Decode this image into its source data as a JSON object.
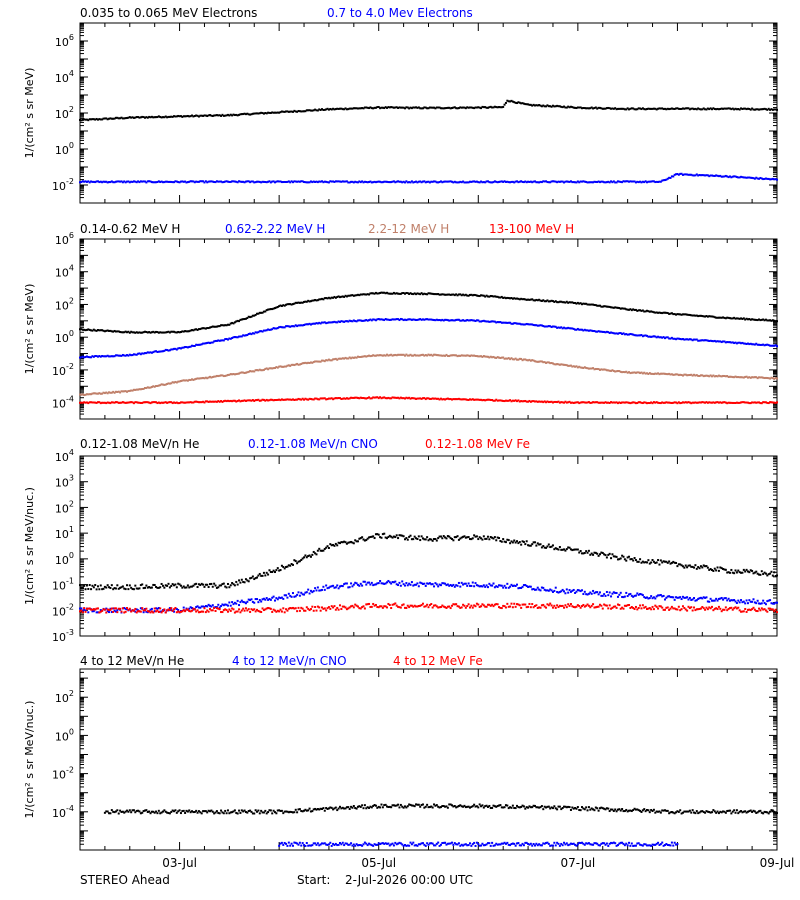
{
  "footer": {
    "spacecraft": "STEREO Ahead",
    "start_label": "Start:",
    "start_value": "2-Jul-2026 00:00 UTC"
  },
  "x_axis": {
    "ticks": [
      {
        "date": "2026-07-03",
        "label": "03-Jul"
      },
      {
        "date": "2026-07-05",
        "label": "05-Jul"
      },
      {
        "date": "2026-07-07",
        "label": "07-Jul"
      },
      {
        "date": "2026-07-09",
        "label": "09-Jul"
      }
    ]
  },
  "chart_data": [
    {
      "type": "scatter",
      "panel": "electrons",
      "ylabel": "1/(cm² s sr MeV)",
      "yscale": "log",
      "ylim": [
        0.001,
        10000000.0
      ],
      "yticks": [
        0.01,
        1,
        100,
        10000,
        1000000
      ],
      "xlim": [
        "2026-07-02 00:00",
        "2026-07-09 00:00"
      ],
      "series": [
        {
          "name": "0.035 to 0.065 MeV Electrons",
          "color": "#000000",
          "x": [
            "2026-07-02 00:00",
            "2026-07-02 12:00",
            "2026-07-03 00:00",
            "2026-07-03 12:00",
            "2026-07-04 00:00",
            "2026-07-04 12:00",
            "2026-07-05 00:00",
            "2026-07-05 12:00",
            "2026-07-06 00:00",
            "2026-07-06 06:00",
            "2026-07-06 07:00",
            "2026-07-06 12:00",
            "2026-07-07 00:00",
            "2026-07-07 12:00",
            "2026-07-08 00:00",
            "2026-07-08 12:00",
            "2026-07-09 00:00"
          ],
          "y": [
            40,
            55,
            65,
            75,
            110,
            160,
            200,
            190,
            200,
            210,
            500,
            280,
            200,
            170,
            170,
            170,
            160
          ]
        },
        {
          "name": "0.7 to 4.0 Mev Electrons",
          "color": "#0000ff",
          "x": [
            "2026-07-02 00:00",
            "2026-07-03 00:00",
            "2026-07-04 00:00",
            "2026-07-05 00:00",
            "2026-07-06 00:00",
            "2026-07-07 00:00",
            "2026-07-07 20:00",
            "2026-07-08 00:00",
            "2026-07-08 12:00",
            "2026-07-09 00:00"
          ],
          "y": [
            0.015,
            0.015,
            0.015,
            0.015,
            0.015,
            0.015,
            0.015,
            0.04,
            0.03,
            0.02
          ]
        }
      ]
    },
    {
      "type": "scatter",
      "panel": "protons",
      "ylabel": "1/(cm² s sr MeV)",
      "yscale": "log",
      "ylim": [
        1e-05,
        1000000.0
      ],
      "yticks": [
        0.0001,
        0.01,
        1,
        100,
        10000,
        1000000
      ],
      "xlim": [
        "2026-07-02 00:00",
        "2026-07-09 00:00"
      ],
      "series": [
        {
          "name": "0.14-0.62 MeV H",
          "color": "#000000",
          "x": [
            "2026-07-02 00:00",
            "2026-07-02 12:00",
            "2026-07-03 00:00",
            "2026-07-03 12:00",
            "2026-07-04 00:00",
            "2026-07-04 12:00",
            "2026-07-05 00:00",
            "2026-07-05 12:00",
            "2026-07-06 00:00",
            "2026-07-06 12:00",
            "2026-07-07 00:00",
            "2026-07-07 12:00",
            "2026-07-08 00:00",
            "2026-07-08 12:00",
            "2026-07-09 00:00"
          ],
          "y": [
            3,
            2,
            2,
            6,
            80,
            250,
            500,
            450,
            350,
            200,
            120,
            50,
            25,
            15,
            10
          ]
        },
        {
          "name": "0.62-2.22 MeV H",
          "color": "#0000ff",
          "x": [
            "2026-07-02 00:00",
            "2026-07-02 12:00",
            "2026-07-03 00:00",
            "2026-07-03 12:00",
            "2026-07-04 00:00",
            "2026-07-04 12:00",
            "2026-07-05 00:00",
            "2026-07-05 12:00",
            "2026-07-06 00:00",
            "2026-07-06 12:00",
            "2026-07-07 00:00",
            "2026-07-07 12:00",
            "2026-07-08 00:00",
            "2026-07-08 12:00",
            "2026-07-09 00:00"
          ],
          "y": [
            0.06,
            0.08,
            0.2,
            0.8,
            4,
            8,
            12,
            12,
            10,
            6,
            3,
            1.5,
            0.8,
            0.5,
            0.3
          ]
        },
        {
          "name": "2.2-12 MeV H",
          "color": "#c0806a",
          "x": [
            "2026-07-02 00:00",
            "2026-07-02 12:00",
            "2026-07-03 00:00",
            "2026-07-03 12:00",
            "2026-07-04 00:00",
            "2026-07-04 12:00",
            "2026-07-05 00:00",
            "2026-07-05 12:00",
            "2026-07-06 00:00",
            "2026-07-06 12:00",
            "2026-07-07 00:00",
            "2026-07-07 12:00",
            "2026-07-08 00:00",
            "2026-07-08 12:00",
            "2026-07-09 00:00"
          ],
          "y": [
            0.0003,
            0.0005,
            0.002,
            0.005,
            0.015,
            0.04,
            0.08,
            0.08,
            0.07,
            0.04,
            0.015,
            0.007,
            0.005,
            0.004,
            0.003
          ]
        },
        {
          "name": "13-100 MeV H",
          "color": "#ff0000",
          "x": [
            "2026-07-02 00:00",
            "2026-07-03 00:00",
            "2026-07-04 00:00",
            "2026-07-05 00:00",
            "2026-07-06 00:00",
            "2026-07-07 00:00",
            "2026-07-08 00:00",
            "2026-07-09 00:00"
          ],
          "y": [
            0.0001,
            0.0001,
            0.00015,
            0.0002,
            0.00015,
            0.0001,
            0.0001,
            0.0001
          ]
        }
      ]
    },
    {
      "type": "scatter",
      "panel": "he_cno_fe_low",
      "ylabel": "1/(cm² s sr MeV/nuc.)",
      "yscale": "log",
      "ylim": [
        0.001,
        10000.0
      ],
      "yticks": [
        0.001,
        0.01,
        0.1,
        1,
        10,
        100,
        1000,
        10000
      ],
      "xlim": [
        "2026-07-02 00:00",
        "2026-07-09 00:00"
      ],
      "series": [
        {
          "name": "0.12-1.08 MeV/n He",
          "color": "#000000",
          "x": [
            "2026-07-02 00:00",
            "2026-07-02 12:00",
            "2026-07-03 00:00",
            "2026-07-03 12:00",
            "2026-07-04 00:00",
            "2026-07-04 12:00",
            "2026-07-05 00:00",
            "2026-07-05 12:00",
            "2026-07-06 00:00",
            "2026-07-06 12:00",
            "2026-07-07 00:00",
            "2026-07-07 12:00",
            "2026-07-08 00:00",
            "2026-07-08 12:00",
            "2026-07-09 00:00"
          ],
          "y": [
            0.08,
            0.08,
            0.09,
            0.09,
            0.4,
            3,
            8,
            6,
            7,
            4,
            2,
            1,
            0.6,
            0.35,
            0.25
          ]
        },
        {
          "name": "0.12-1.08 MeV/n CNO",
          "color": "#0000ff",
          "x": [
            "2026-07-02 00:00",
            "2026-07-03 00:00",
            "2026-07-04 00:00",
            "2026-07-04 12:00",
            "2026-07-05 00:00",
            "2026-07-05 12:00",
            "2026-07-06 00:00",
            "2026-07-06 12:00",
            "2026-07-07 00:00",
            "2026-07-08 00:00",
            "2026-07-09 00:00"
          ],
          "y": [
            0.01,
            0.01,
            0.03,
            0.08,
            0.12,
            0.1,
            0.1,
            0.08,
            0.05,
            0.03,
            0.02
          ]
        },
        {
          "name": "0.12-1.08 MeV Fe",
          "color": "#ff0000",
          "x": [
            "2026-07-02 00:00",
            "2026-07-03 00:00",
            "2026-07-04 00:00",
            "2026-07-05 00:00",
            "2026-07-06 00:00",
            "2026-07-07 00:00",
            "2026-07-08 00:00",
            "2026-07-09 00:00"
          ],
          "y": [
            0.01,
            0.01,
            0.01,
            0.015,
            0.015,
            0.015,
            0.012,
            0.01
          ]
        }
      ]
    },
    {
      "type": "scatter",
      "panel": "he_cno_fe_high",
      "ylabel": "1/(cm² s sr MeV/nuc.)",
      "yscale": "log",
      "ylim": [
        1e-06,
        3000.0
      ],
      "yticks": [
        0.0001,
        0.01,
        1,
        100
      ],
      "xlim": [
        "2026-07-02 00:00",
        "2026-07-09 00:00"
      ],
      "series": [
        {
          "name": "4 to 12 MeV/n He",
          "color": "#000000",
          "x": [
            "2026-07-02 06:00",
            "2026-07-03 00:00",
            "2026-07-04 00:00",
            "2026-07-05 00:00",
            "2026-07-06 00:00",
            "2026-07-07 00:00",
            "2026-07-08 00:00",
            "2026-07-09 00:00"
          ],
          "y": [
            0.0001,
            0.0001,
            0.0001,
            0.0002,
            0.0002,
            0.00015,
            0.0001,
            0.0001
          ]
        },
        {
          "name": "4 to 12 MeV/n CNO",
          "color": "#0000ff",
          "x": [
            "2026-07-04 00:00",
            "2026-07-05 00:00",
            "2026-07-06 00:00",
            "2026-07-07 00:00",
            "2026-07-08 00:00"
          ],
          "y": [
            2e-06,
            2e-06,
            2e-06,
            2e-06,
            2e-06
          ]
        },
        {
          "name": "4 to 12 MeV Fe",
          "color": "#ff0000",
          "x": [],
          "y": []
        }
      ]
    }
  ]
}
